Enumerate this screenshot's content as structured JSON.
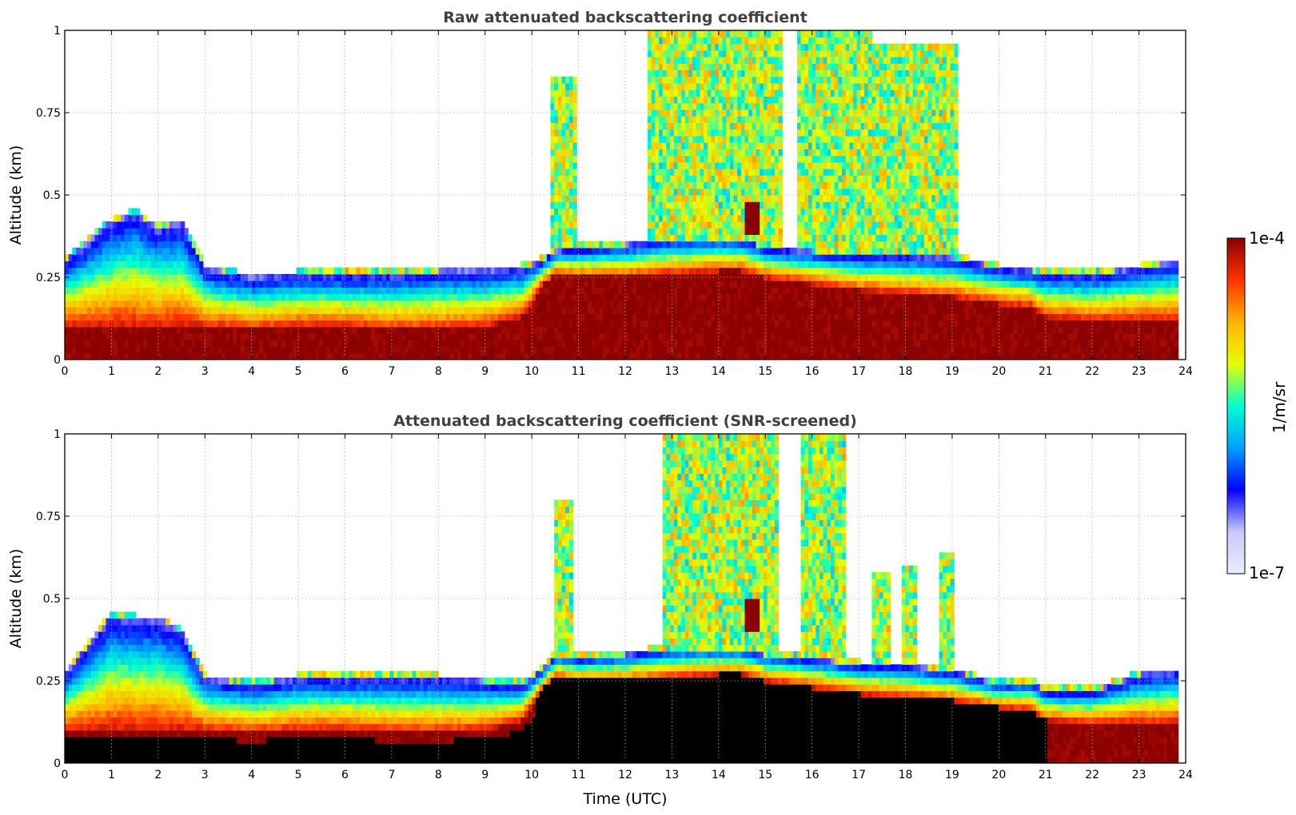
{
  "colormap": {
    "min_label": "1e-7",
    "max_label": "1e-4",
    "unit_label": "1/m/sr",
    "stops": [
      "#ebebff",
      "#c8c8ff",
      "#0000ff",
      "#00a0ff",
      "#00ffd0",
      "#e6ff00",
      "#ffb400",
      "#ff3200",
      "#8b0000"
    ]
  },
  "chart_data": [
    {
      "type": "heatmap",
      "title": "Raw attenuated backscattering coefficient",
      "xlabel": "",
      "ylabel": "Altitude (km)",
      "xlim": [
        0,
        24
      ],
      "ylim": [
        0,
        1
      ],
      "x_ticks": [
        "0",
        "1",
        "2",
        "3",
        "4",
        "5",
        "6",
        "7",
        "8",
        "9",
        "10",
        "11",
        "12",
        "13",
        "14",
        "15",
        "16",
        "17",
        "18",
        "19",
        "20",
        "21",
        "22",
        "23",
        "24"
      ],
      "y_ticks": [
        "0",
        "0.25",
        "0.5",
        "0.75",
        "1"
      ],
      "grid": true,
      "screened": false,
      "profile": {
        "time_h": [
          0,
          1,
          1.5,
          2,
          2.5,
          3,
          4,
          5,
          6,
          7,
          8,
          9,
          9.8,
          10.2,
          10.5,
          11,
          12,
          13,
          14,
          14.5,
          15,
          16,
          17,
          18,
          19,
          20,
          20.7,
          21,
          22,
          23,
          23.8
        ],
        "layer_top_km": [
          0.1,
          0.1,
          0.1,
          0.1,
          0.1,
          0.1,
          0.09,
          0.1,
          0.1,
          0.09,
          0.09,
          0.1,
          0.13,
          0.22,
          0.26,
          0.25,
          0.25,
          0.26,
          0.27,
          0.27,
          0.25,
          0.23,
          0.21,
          0.2,
          0.19,
          0.17,
          0.16,
          0.13,
          0.12,
          0.12,
          0.12
        ],
        "aerosol_top_km": [
          0.3,
          0.42,
          0.45,
          0.4,
          0.42,
          0.28,
          0.25,
          0.26,
          0.26,
          0.26,
          0.27,
          0.27,
          0.28,
          0.3,
          0.33,
          0.34,
          0.35,
          0.37,
          0.37,
          0.37,
          0.34,
          0.33,
          0.32,
          0.32,
          0.31,
          0.28,
          0.27,
          0.26,
          0.26,
          0.28,
          0.3
        ],
        "convective_plumes": [
          {
            "start_h": 10.4,
            "end_h": 11.0,
            "top_km": 0.85
          },
          {
            "start_h": 12.5,
            "end_h": 15.4,
            "top_km": 1.0
          },
          {
            "start_h": 15.7,
            "end_h": 17.3,
            "top_km": 1.0
          },
          {
            "start_h": 17.3,
            "end_h": 19.1,
            "top_km": 0.95
          }
        ],
        "cloud_core": {
          "time_h": 14.7,
          "alt_km": 0.43
        }
      }
    },
    {
      "type": "heatmap",
      "title": "Attenuated backscattering coefficient (SNR-screened)",
      "xlabel": "Time (UTC)",
      "ylabel": "Altitude (km)",
      "xlim": [
        0,
        24
      ],
      "ylim": [
        0,
        1
      ],
      "x_ticks": [
        "0",
        "1",
        "2",
        "3",
        "4",
        "5",
        "6",
        "7",
        "8",
        "9",
        "10",
        "11",
        "12",
        "13",
        "14",
        "15",
        "16",
        "17",
        "18",
        "19",
        "20",
        "21",
        "22",
        "23",
        "24"
      ],
      "y_ticks": [
        "0",
        "0.25",
        "0.5",
        "0.75",
        "1"
      ],
      "grid": true,
      "screened": true,
      "profile": {
        "time_h": [
          0,
          1,
          1.5,
          2,
          2.5,
          3,
          4,
          5,
          6,
          7,
          8,
          9,
          9.8,
          10.2,
          10.5,
          11,
          12,
          13,
          14,
          14.5,
          15,
          16,
          17,
          18,
          19,
          20,
          20.7,
          21,
          22,
          23,
          23.8
        ],
        "layer_top_km": [
          0.1,
          0.1,
          0.1,
          0.1,
          0.1,
          0.1,
          0.09,
          0.1,
          0.1,
          0.09,
          0.09,
          0.1,
          0.13,
          0.22,
          0.26,
          0.25,
          0.25,
          0.26,
          0.27,
          0.27,
          0.25,
          0.23,
          0.21,
          0.2,
          0.19,
          0.17,
          0.16,
          0.13,
          0.12,
          0.12,
          0.12
        ],
        "aerosol_top_km": [
          0.27,
          0.45,
          0.44,
          0.44,
          0.4,
          0.26,
          0.24,
          0.26,
          0.26,
          0.26,
          0.26,
          0.25,
          0.24,
          0.28,
          0.33,
          0.32,
          0.33,
          0.35,
          0.35,
          0.35,
          0.33,
          0.32,
          0.3,
          0.3,
          0.28,
          0.24,
          0.25,
          0.22,
          0.22,
          0.27,
          0.28
        ],
        "convective_plumes": [
          {
            "start_h": 10.5,
            "end_h": 10.9,
            "top_km": 0.8
          },
          {
            "start_h": 12.8,
            "end_h": 15.3,
            "top_km": 1.0
          },
          {
            "start_h": 15.8,
            "end_h": 16.7,
            "top_km": 1.0
          },
          {
            "start_h": 16.2,
            "end_h": 16.6,
            "top_km": 0.72
          },
          {
            "start_h": 17.3,
            "end_h": 17.7,
            "top_km": 0.57
          },
          {
            "start_h": 17.9,
            "end_h": 18.2,
            "top_km": 0.6
          },
          {
            "start_h": 18.7,
            "end_h": 19.0,
            "top_km": 0.64
          }
        ],
        "cloud_core": {
          "time_h": 14.7,
          "alt_km": 0.45
        }
      }
    }
  ]
}
